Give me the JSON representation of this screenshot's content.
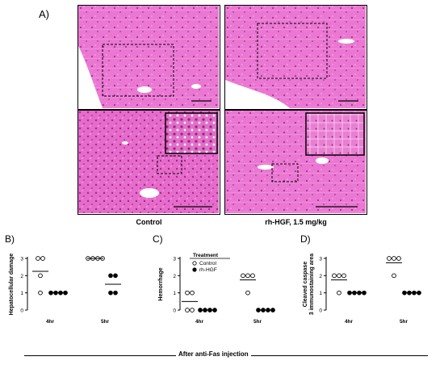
{
  "panel_a": {
    "letter": "A)",
    "caption_left": "Control",
    "caption_right": "rh-HGF, 1.5 mg/kg",
    "tissue_color": "#e86fcf",
    "tissue_dark": "#c1389f"
  },
  "footer": {
    "label": "After anti-Fas injection"
  },
  "chart_data": [
    {
      "type": "scatter",
      "letter": "B)",
      "ylabel": "Hepatocellular damage",
      "ylim": [
        0,
        3
      ],
      "yticks": [
        "0",
        "1",
        "2",
        "3"
      ],
      "categories": [
        "4hr",
        "5hr"
      ],
      "series": [
        {
          "marker": "open",
          "points": [
            {
              "x": "4hr",
              "y": 3
            },
            {
              "x": "4hr",
              "y": 3
            },
            {
              "x": "4hr",
              "y": 2
            },
            {
              "x": "4hr",
              "y": 1
            },
            {
              "x": "5hr",
              "y": 3
            },
            {
              "x": "5hr",
              "y": 3
            },
            {
              "x": "5hr",
              "y": 3
            },
            {
              "x": "5hr",
              "y": 3
            }
          ],
          "means": [
            {
              "x": "4hr",
              "y": 2.25
            },
            {
              "x": "5hr",
              "y": 3
            }
          ]
        },
        {
          "marker": "filled",
          "points": [
            {
              "x": "4hr",
              "y": 1
            },
            {
              "x": "4hr",
              "y": 1
            },
            {
              "x": "4hr",
              "y": 1
            },
            {
              "x": "4hr",
              "y": 1
            },
            {
              "x": "5hr",
              "y": 2
            },
            {
              "x": "5hr",
              "y": 2
            },
            {
              "x": "5hr",
              "y": 1
            },
            {
              "x": "5hr",
              "y": 1
            }
          ],
          "means": [
            {
              "x": "4hr",
              "y": 1
            },
            {
              "x": "5hr",
              "y": 1.5
            }
          ]
        }
      ]
    },
    {
      "type": "scatter",
      "letter": "C)",
      "ylabel": "Hemorrhage",
      "ylim": [
        0,
        3
      ],
      "yticks": [
        "0",
        "1",
        "2",
        "3"
      ],
      "categories": [
        "4hr",
        "5hr"
      ],
      "legend": {
        "title": "Treatment",
        "entries": [
          "Control",
          "rh-HGF"
        ]
      },
      "series": [
        {
          "name": "Control",
          "marker": "open",
          "points": [
            {
              "x": "4hr",
              "y": 1
            },
            {
              "x": "4hr",
              "y": 1
            },
            {
              "x": "4hr",
              "y": 0
            },
            {
              "x": "4hr",
              "y": 0
            },
            {
              "x": "5hr",
              "y": 2
            },
            {
              "x": "5hr",
              "y": 2
            },
            {
              "x": "5hr",
              "y": 2
            },
            {
              "x": "5hr",
              "y": 1
            }
          ],
          "means": [
            {
              "x": "4hr",
              "y": 0.5
            },
            {
              "x": "5hr",
              "y": 1.75
            }
          ]
        },
        {
          "name": "rh-HGF",
          "marker": "filled",
          "points": [
            {
              "x": "4hr",
              "y": 0
            },
            {
              "x": "4hr",
              "y": 0
            },
            {
              "x": "4hr",
              "y": 0
            },
            {
              "x": "4hr",
              "y": 0
            },
            {
              "x": "5hr",
              "y": 0
            },
            {
              "x": "5hr",
              "y": 0
            },
            {
              "x": "5hr",
              "y": 0
            },
            {
              "x": "5hr",
              "y": 0
            }
          ],
          "means": [
            {
              "x": "4hr",
              "y": 0
            },
            {
              "x": "5hr",
              "y": 0
            }
          ]
        }
      ]
    },
    {
      "type": "scatter",
      "letter": "D)",
      "ylabel": "Cleaved caspase 3 immunostaining area",
      "ylim": [
        0,
        3
      ],
      "yticks": [
        "0",
        "1",
        "2",
        "3"
      ],
      "categories": [
        "4hr",
        "5hr"
      ],
      "series": [
        {
          "marker": "open",
          "points": [
            {
              "x": "4hr",
              "y": 2
            },
            {
              "x": "4hr",
              "y": 2
            },
            {
              "x": "4hr",
              "y": 2
            },
            {
              "x": "4hr",
              "y": 1
            },
            {
              "x": "5hr",
              "y": 3
            },
            {
              "x": "5hr",
              "y": 3
            },
            {
              "x": "5hr",
              "y": 3
            },
            {
              "x": "5hr",
              "y": 2
            }
          ],
          "means": [
            {
              "x": "4hr",
              "y": 1.75
            },
            {
              "x": "5hr",
              "y": 2.75
            }
          ]
        },
        {
          "marker": "filled",
          "points": [
            {
              "x": "4hr",
              "y": 1
            },
            {
              "x": "4hr",
              "y": 1
            },
            {
              "x": "4hr",
              "y": 1
            },
            {
              "x": "4hr",
              "y": 1
            },
            {
              "x": "5hr",
              "y": 1
            },
            {
              "x": "5hr",
              "y": 1
            },
            {
              "x": "5hr",
              "y": 1
            },
            {
              "x": "5hr",
              "y": 1
            }
          ],
          "means": [
            {
              "x": "4hr",
              "y": 1
            },
            {
              "x": "5hr",
              "y": 1
            }
          ]
        }
      ]
    }
  ]
}
